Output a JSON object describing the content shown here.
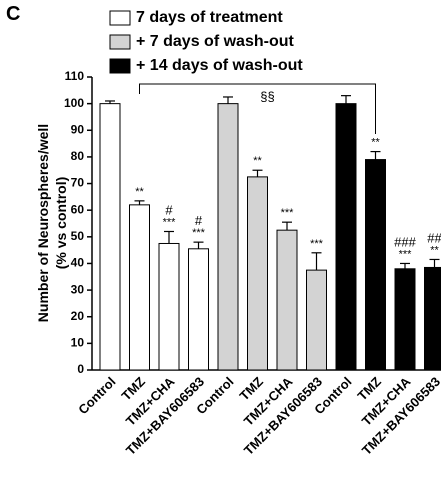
{
  "chart_data": {
    "type": "bar",
    "panel_label": "C",
    "y_label": [
      "Number of Neurospheres/well",
      "(% vs control)"
    ],
    "categories": [
      "Control",
      "TMZ",
      "TMZ+CHA",
      "TMZ+BAY606583"
    ],
    "series": [
      {
        "name": "7 days of treatment",
        "color": "#ffffff",
        "values": [
          100,
          62,
          47.5,
          45.5
        ],
        "errors": [
          1,
          1.5,
          4.5,
          2.5
        ],
        "stars": [
          null,
          "**",
          "***",
          "***"
        ],
        "hashes": [
          null,
          null,
          "#",
          "#"
        ]
      },
      {
        "name": "+ 7 days of wash-out",
        "color": "#d3d3d3",
        "values": [
          100,
          72.5,
          52.5,
          37.5
        ],
        "errors": [
          2.5,
          2.5,
          3,
          6.5
        ],
        "stars": [
          null,
          "**",
          "***",
          "***"
        ],
        "hashes": [
          null,
          null,
          null,
          null
        ]
      },
      {
        "name": "+ 14 days of wash-out",
        "color": "#000000",
        "values": [
          100,
          79,
          38,
          38.5
        ],
        "errors": [
          3,
          3,
          2,
          3
        ],
        "stars": [
          null,
          "**",
          "***",
          "**"
        ],
        "hashes": [
          null,
          null,
          "###",
          "##"
        ]
      }
    ],
    "bracket": {
      "label": "§§"
    },
    "ylim": [
      0,
      110
    ],
    "yticks": [
      0,
      10,
      20,
      30,
      40,
      50,
      60,
      70,
      80,
      90,
      100,
      110
    ]
  }
}
